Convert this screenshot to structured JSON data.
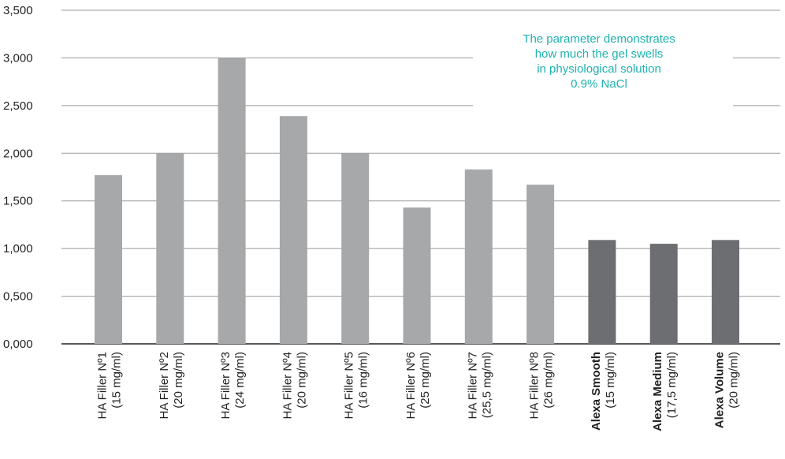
{
  "chart_data": {
    "type": "bar",
    "categories": [
      {
        "name": "HA Filler Nº1",
        "sub": "(15 mg/ml)",
        "bold": false
      },
      {
        "name": "HA Filler Nº2",
        "sub": "(20 mg/ml)",
        "bold": false
      },
      {
        "name": "HA Filler Nº3",
        "sub": "(24 mg/ml)",
        "bold": false
      },
      {
        "name": "HA Filler Nº4",
        "sub": "(20 mg/ml)",
        "bold": false
      },
      {
        "name": "HA Filler Nº5",
        "sub": "(16 mg/ml)",
        "bold": false
      },
      {
        "name": "HA Filler Nº6",
        "sub": "(25 mg/ml)",
        "bold": false
      },
      {
        "name": "HA Filler Nº7",
        "sub": "(25,5 mg/ml)",
        "bold": false
      },
      {
        "name": "HA Filler Nº8",
        "sub": "(26 mg/ml)",
        "bold": false
      },
      {
        "name": "Alexa Smooth",
        "sub": "(15 mg/ml)",
        "bold": true
      },
      {
        "name": "Alexa Medium",
        "sub": "(17,5 mg/ml)",
        "bold": true
      },
      {
        "name": "Alexa Volume",
        "sub": "(20 mg/ml)",
        "bold": true
      }
    ],
    "values": [
      1.77,
      2.0,
      3.0,
      2.39,
      2.0,
      1.43,
      1.83,
      1.67,
      1.09,
      1.05,
      1.09
    ],
    "bar_colors": [
      "#a7a8aa",
      "#a7a8aa",
      "#a7a8aa",
      "#a7a8aa",
      "#a7a8aa",
      "#a7a8aa",
      "#a7a8aa",
      "#a7a8aa",
      "#6d6e71",
      "#6d6e71",
      "#6d6e71"
    ],
    "ylim": [
      0,
      3.5
    ],
    "yticks": [
      {
        "value": 0,
        "label": "0,000"
      },
      {
        "value": 0.5,
        "label": "0,500"
      },
      {
        "value": 1.0,
        "label": "1,000"
      },
      {
        "value": 1.5,
        "label": "1,500"
      },
      {
        "value": 2.0,
        "label": "2,000"
      },
      {
        "value": 2.5,
        "label": "2,500"
      },
      {
        "value": 3.0,
        "label": "3,000"
      },
      {
        "value": 3.5,
        "label": "3,500"
      }
    ],
    "grid": true,
    "annotation": [
      "The parameter demonstrates",
      "how much the gel swells",
      "in physiological solution",
      "0.9% NaCl"
    ],
    "annotation_color": "#1fb2b0",
    "grid_color": "#9a9a9a",
    "axis_color": "#222222"
  }
}
